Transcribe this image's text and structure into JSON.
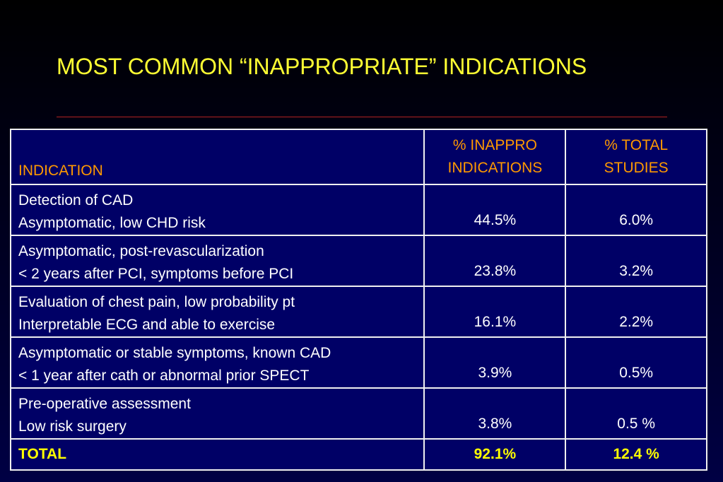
{
  "title": "MOST COMMON “INAPPROPRIATE” INDICATIONS",
  "colors": {
    "title": "#ffff33",
    "header_text": "#ff9900",
    "table_bg": "#000066",
    "total_text": "#ffff00",
    "rule": "#b22222"
  },
  "table": {
    "headers": {
      "indication": "INDICATION",
      "inappro": [
        "% INAPPRO",
        "INDICATIONS"
      ],
      "total_studies": [
        "% TOTAL",
        "STUDIES"
      ]
    },
    "rows": [
      {
        "line1": "Detection of CAD",
        "line2": "Asymptomatic, low CHD risk",
        "inappro": "44.5%",
        "total": "6.0%"
      },
      {
        "line1": "Asymptomatic, post-revascularization",
        "line2": "< 2 years after PCI, symptoms before PCI",
        "inappro": "23.8%",
        "total": "3.2%"
      },
      {
        "line1": "Evaluation of chest pain, low probability pt",
        "line2": "Interpretable ECG and able to exercise",
        "inappro": "16.1%",
        "total": "2.2%"
      },
      {
        "line1": "Asymptomatic or stable symptoms, known CAD",
        "line2": "< 1 year after cath or abnormal prior SPECT",
        "inappro": "3.9%",
        "total": "0.5%"
      },
      {
        "line1": "Pre-operative assessment",
        "line2": "Low risk surgery",
        "inappro": "3.8%",
        "total": "0.5 %"
      }
    ],
    "total": {
      "label": "TOTAL",
      "inappro": "92.1%",
      "total": "12.4 %"
    }
  }
}
